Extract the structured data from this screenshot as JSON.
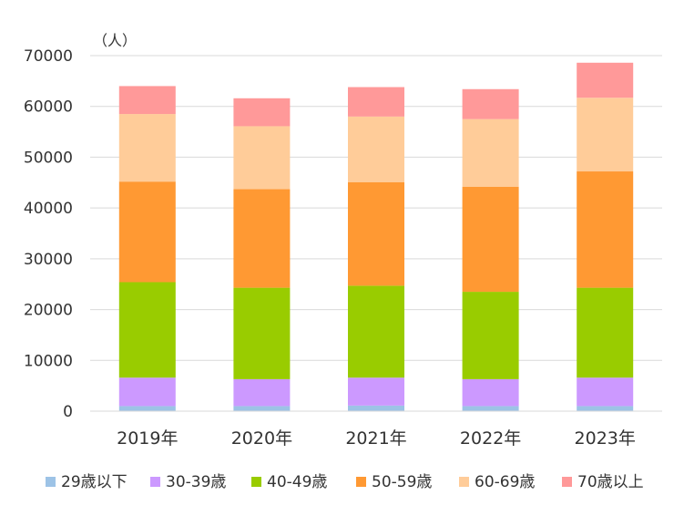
{
  "chart_data": {
    "type": "bar",
    "stacked": true,
    "unit_label": "（人）",
    "categories": [
      "2019年",
      "2020年",
      "2021年",
      "2022年",
      "2023年"
    ],
    "ylim": [
      0,
      70000
    ],
    "yticks": [
      0,
      10000,
      20000,
      30000,
      40000,
      50000,
      60000,
      70000
    ],
    "grid": true,
    "legend_position": "bottom",
    "series": [
      {
        "name": "29歳以下",
        "color": "#9DC3E6",
        "values": [
          1000,
          1000,
          1100,
          1000,
          1000
        ]
      },
      {
        "name": "30-39歳",
        "color": "#CC99FF",
        "values": [
          5600,
          5300,
          5500,
          5300,
          5600
        ]
      },
      {
        "name": "40-49歳",
        "color": "#99CC00",
        "values": [
          18800,
          18000,
          18100,
          17200,
          17700
        ]
      },
      {
        "name": "50-59歳",
        "color": "#FF9933",
        "values": [
          19800,
          19400,
          20400,
          20700,
          22900
        ]
      },
      {
        "name": "60-69歳",
        "color": "#FFCC99",
        "values": [
          13300,
          12400,
          12900,
          13300,
          14500
        ]
      },
      {
        "name": "70歳以上",
        "color": "#FF9999",
        "values": [
          5500,
          5500,
          5800,
          5900,
          6900
        ]
      }
    ]
  }
}
